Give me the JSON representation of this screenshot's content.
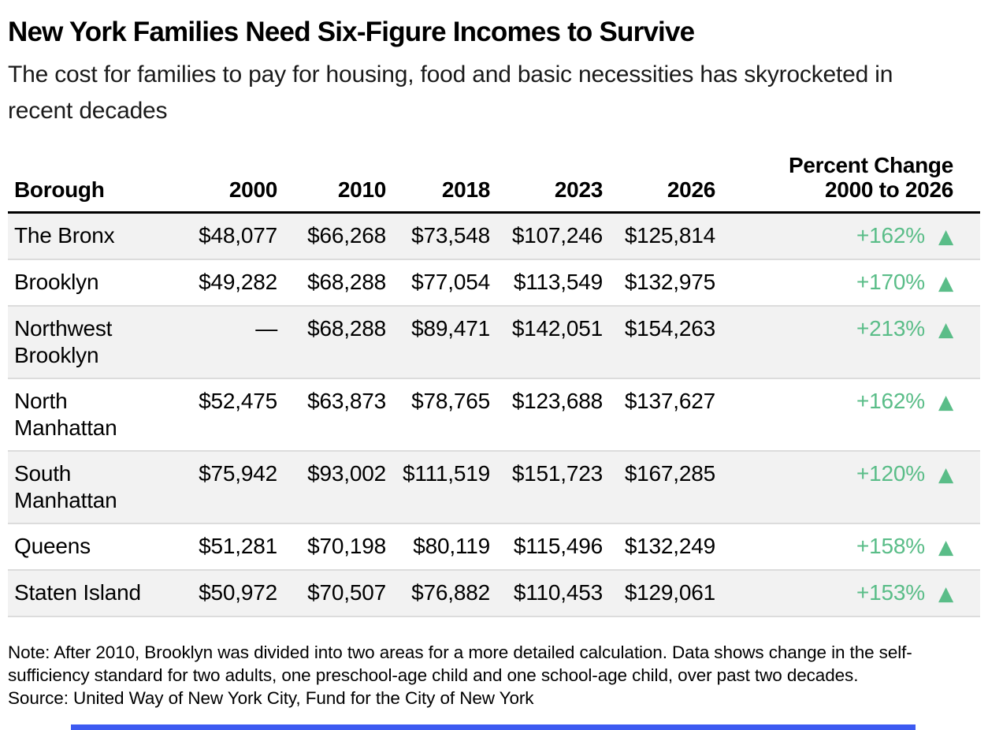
{
  "header": {
    "title": "New York Families Need Six-Figure Incomes to Survive",
    "subtitle": "The cost for families to pay for housing, food and basic necessities has skyrocketed in recent decades"
  },
  "table": {
    "columns": [
      "Borough",
      "2000",
      "2010",
      "2018",
      "2023",
      "2026"
    ],
    "percent_header_line1": "Percent Change",
    "percent_header_line2": "2000 to 2026",
    "up_triangle_icon": "▲",
    "rows": [
      {
        "borough": "The Bronx",
        "y2000": "$48,077",
        "y2010": "$66,268",
        "y2018": "$73,548",
        "y2023": "$107,246",
        "y2026": "$125,814",
        "change": "+162%"
      },
      {
        "borough": "Brooklyn",
        "y2000": "$49,282",
        "y2010": "$68,288",
        "y2018": "$77,054",
        "y2023": "$113,549",
        "y2026": "$132,975",
        "change": "+170%"
      },
      {
        "borough": "Northwest Brooklyn",
        "y2000": "—",
        "y2010": "$68,288",
        "y2018": "$89,471",
        "y2023": "$142,051",
        "y2026": "$154,263",
        "change": "+213%"
      },
      {
        "borough": "North Manhattan",
        "y2000": "$52,475",
        "y2010": "$63,873",
        "y2018": "$78,765",
        "y2023": "$123,688",
        "y2026": "$137,627",
        "change": "+162%"
      },
      {
        "borough": "South Manhattan",
        "y2000": "$75,942",
        "y2010": "$93,002",
        "y2018": "$111,519",
        "y2023": "$151,723",
        "y2026": "$167,285",
        "change": "+120%"
      },
      {
        "borough": "Queens",
        "y2000": "$51,281",
        "y2010": "$70,198",
        "y2018": "$80,119",
        "y2023": "$115,496",
        "y2026": "$132,249",
        "change": "+158%"
      },
      {
        "borough": "Staten Island",
        "y2000": "$50,972",
        "y2010": "$70,507",
        "y2018": "$76,882",
        "y2023": "$110,453",
        "y2026": "$129,061",
        "change": "+153%"
      }
    ]
  },
  "footer": {
    "note": "Note: After 2010, Brooklyn was divided into two areas for a more detailed calculation. Data shows change in the self-sufficiency standard for two adults, one preschool-age child and one school-age child, over past two decades.",
    "source": "Source: United Way of New York City, Fund for the City of New York"
  },
  "colors": {
    "accent_green": "#5abd88",
    "row_stripe": "#f2f2f2",
    "divider": "#dcdcdc",
    "header_rule": "#000000",
    "scrollbar_blue": "#3d5af1"
  },
  "chart_data": {
    "type": "table",
    "title": "New York Families Need Six-Figure Incomes to Survive",
    "subtitle": "The cost for families to pay for housing, food and basic necessities has skyrocketed in recent decades",
    "columns": [
      "Borough",
      "2000",
      "2010",
      "2018",
      "2023",
      "2026",
      "Percent Change 2000 to 2026"
    ],
    "rows": [
      [
        "The Bronx",
        48077,
        66268,
        73548,
        107246,
        125814,
        162
      ],
      [
        "Brooklyn",
        49282,
        68288,
        77054,
        113549,
        132975,
        170
      ],
      [
        "Northwest Brooklyn",
        null,
        68288,
        89471,
        142051,
        154263,
        213
      ],
      [
        "North Manhattan",
        52475,
        63873,
        78765,
        123688,
        137627,
        162
      ],
      [
        "South Manhattan",
        75942,
        93002,
        111519,
        151723,
        167285,
        120
      ],
      [
        "Queens",
        51281,
        70198,
        80119,
        115496,
        132249,
        158
      ],
      [
        "Staten Island",
        50972,
        70507,
        76882,
        110453,
        129061,
        153
      ]
    ],
    "units": {
      "values": "USD per year",
      "percent_change": "% change 2000 to 2026"
    },
    "note": "Note: After 2010, Brooklyn was divided into two areas for a more detailed calculation. Data shows change in the self-sufficiency standard for two adults, one preschool-age child and one school-age child, over past two decades.",
    "source": "Source: United Way of New York City, Fund for the City of New York",
    "layout": {
      "row_striping": true,
      "change_color": "#5abd88",
      "change_marker": "up-triangle"
    }
  }
}
